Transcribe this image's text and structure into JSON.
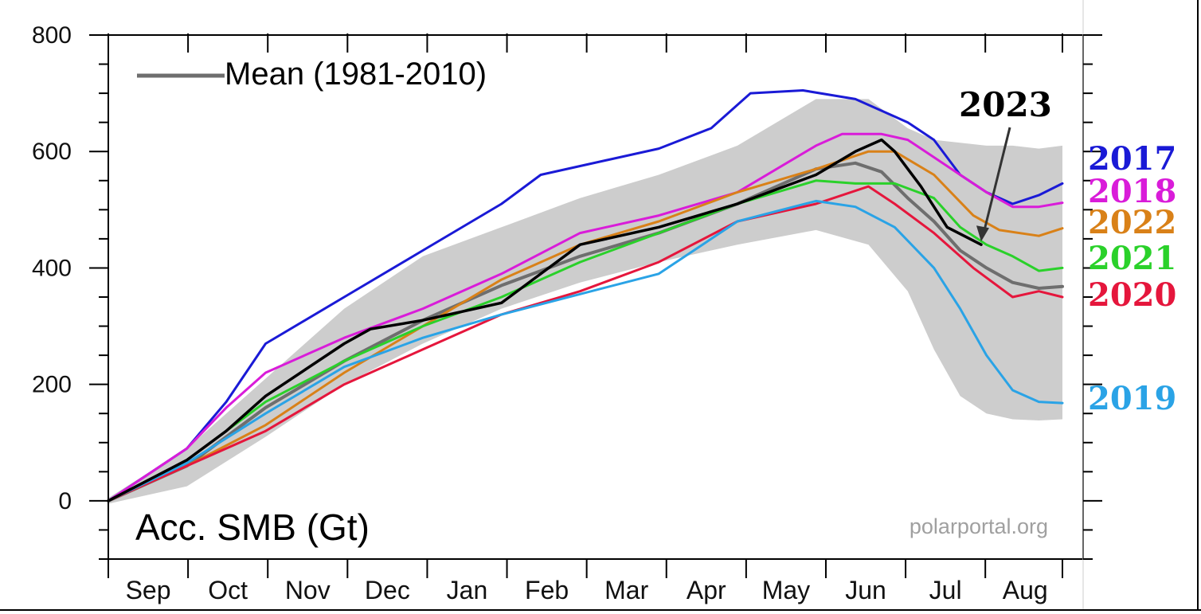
{
  "chart_data": {
    "type": "line",
    "title": "Acc. SMB (Gt)",
    "credit": "polarportal.org",
    "ylim": [
      -100,
      800
    ],
    "y_ticks": [
      "0",
      "200",
      "400",
      "600",
      "800"
    ],
    "y_tick_values": [
      0,
      200,
      400,
      600,
      800
    ],
    "x_range_days": [
      0,
      364
    ],
    "month_labels": [
      "Sep",
      "Oct",
      "Nov",
      "Dec",
      "Jan",
      "Feb",
      "Mar",
      "Apr",
      "May",
      "Jun",
      "Jul",
      "Aug"
    ],
    "grid": false,
    "legend": {
      "label": "Mean (1981-2010)",
      "placement": "top-left"
    },
    "callout": {
      "text": "2023",
      "points_to_day": 333,
      "points_to_value": 440
    },
    "band": {
      "x": [
        0,
        30,
        60,
        90,
        120,
        150,
        180,
        210,
        240,
        270,
        290,
        305,
        315,
        325,
        335,
        345,
        355,
        364
      ],
      "upper": [
        5,
        90,
        210,
        330,
        420,
        470,
        520,
        560,
        610,
        690,
        690,
        640,
        620,
        615,
        610,
        610,
        605,
        610
      ],
      "lower": [
        -5,
        25,
        110,
        200,
        270,
        330,
        375,
        410,
        440,
        465,
        440,
        360,
        260,
        180,
        150,
        140,
        138,
        140
      ]
    },
    "series": [
      {
        "name": "Mean (1981-2010)",
        "color": "#6e6e6e",
        "x": [
          0,
          30,
          60,
          90,
          120,
          150,
          180,
          210,
          240,
          270,
          285,
          295,
          305,
          315,
          325,
          335,
          345,
          355,
          364
        ],
        "y": [
          0,
          60,
          160,
          240,
          310,
          370,
          420,
          460,
          510,
          570,
          580,
          565,
          520,
          480,
          430,
          400,
          375,
          365,
          368
        ]
      },
      {
        "name": "2017",
        "color": "#1a1ad6",
        "x": [
          0,
          30,
          45,
          60,
          90,
          120,
          150,
          165,
          180,
          210,
          230,
          245,
          265,
          285,
          300,
          305,
          315,
          325,
          335,
          345,
          355,
          364
        ],
        "y": [
          0,
          90,
          170,
          270,
          350,
          430,
          510,
          560,
          575,
          605,
          640,
          700,
          705,
          690,
          660,
          650,
          620,
          560,
          530,
          510,
          525,
          545
        ]
      },
      {
        "name": "2018",
        "color": "#d91cd9",
        "x": [
          0,
          30,
          45,
          60,
          90,
          120,
          150,
          180,
          210,
          240,
          270,
          280,
          295,
          305,
          315,
          325,
          335,
          345,
          355,
          364
        ],
        "y": [
          0,
          90,
          160,
          220,
          280,
          330,
          390,
          460,
          490,
          530,
          610,
          630,
          630,
          620,
          590,
          560,
          530,
          505,
          505,
          512
        ]
      },
      {
        "name": "2022",
        "color": "#d98118",
        "x": [
          0,
          30,
          60,
          90,
          120,
          150,
          180,
          195,
          210,
          240,
          270,
          290,
          300,
          315,
          330,
          340,
          355,
          364
        ],
        "y": [
          0,
          60,
          130,
          220,
          300,
          380,
          440,
          460,
          480,
          530,
          570,
          600,
          600,
          560,
          490,
          465,
          455,
          468
        ]
      },
      {
        "name": "2021",
        "color": "#2ad12a",
        "x": [
          0,
          30,
          60,
          90,
          120,
          150,
          180,
          210,
          240,
          270,
          285,
          300,
          315,
          325,
          335,
          345,
          355,
          364
        ],
        "y": [
          0,
          70,
          170,
          240,
          300,
          350,
          410,
          460,
          510,
          550,
          545,
          545,
          520,
          470,
          440,
          420,
          395,
          400
        ]
      },
      {
        "name": "2020",
        "color": "#e5163c",
        "x": [
          0,
          30,
          60,
          90,
          120,
          150,
          180,
          210,
          240,
          270,
          290,
          300,
          315,
          330,
          345,
          355,
          364
        ],
        "y": [
          0,
          60,
          120,
          200,
          260,
          320,
          360,
          410,
          480,
          510,
          540,
          510,
          460,
          400,
          350,
          360,
          350
        ]
      },
      {
        "name": "2019",
        "color": "#2aa3e6",
        "x": [
          0,
          30,
          60,
          90,
          120,
          150,
          180,
          210,
          240,
          270,
          285,
          300,
          315,
          325,
          335,
          345,
          355,
          364
        ],
        "y": [
          0,
          65,
          150,
          230,
          280,
          320,
          355,
          390,
          480,
          515,
          505,
          470,
          400,
          330,
          250,
          190,
          170,
          168
        ]
      },
      {
        "name": "2023",
        "color": "#000000",
        "x": [
          0,
          30,
          45,
          60,
          90,
          100,
          120,
          150,
          180,
          210,
          240,
          270,
          285,
          295,
          300,
          310,
          320,
          333
        ],
        "y": [
          0,
          70,
          120,
          180,
          270,
          295,
          310,
          340,
          440,
          470,
          510,
          560,
          600,
          620,
          600,
          540,
          470,
          440
        ]
      }
    ]
  },
  "year_labels": [
    {
      "text": "2017",
      "color": "#1a1ad6"
    },
    {
      "text": "2018",
      "color": "#d91cd9"
    },
    {
      "text": "2022",
      "color": "#d98118"
    },
    {
      "text": "2021",
      "color": "#2ad12a"
    },
    {
      "text": "2020",
      "color": "#e5163c"
    },
    {
      "text": "2019",
      "color": "#2aa3e6"
    }
  ]
}
